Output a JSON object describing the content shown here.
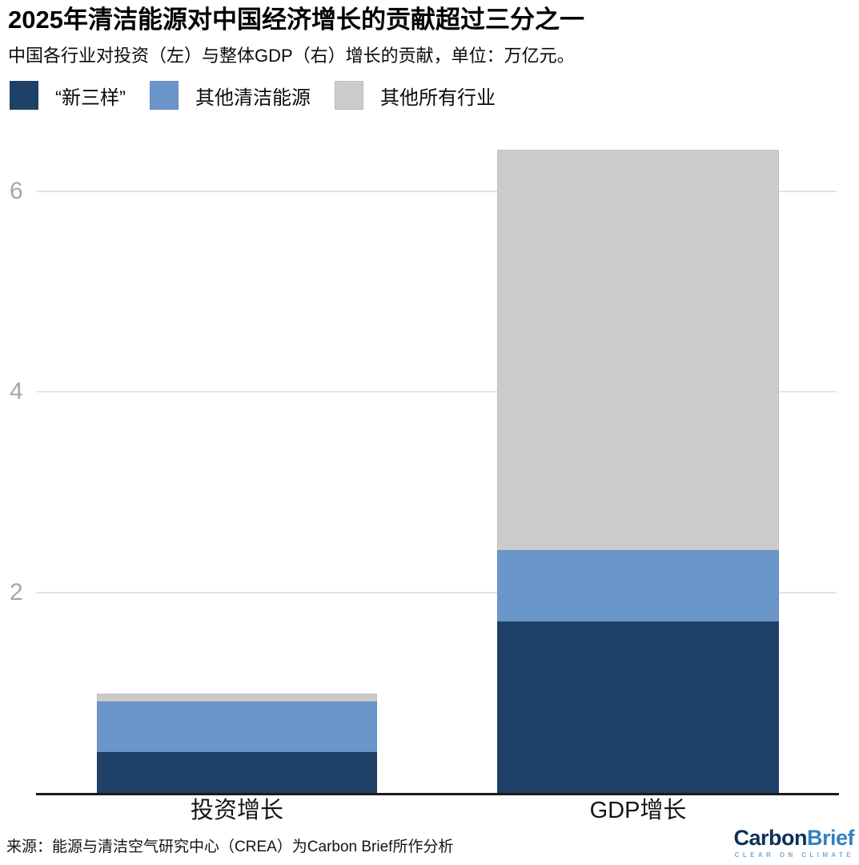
{
  "header": {
    "title": "2025年清洁能源对中国经济增长的贡献超过三分之一",
    "subtitle": "中国各行业对投资（左）与整体GDP（右）增长的贡献，单位：万亿元。"
  },
  "chart_data": {
    "type": "bar",
    "stacked": true,
    "unit": "万亿元",
    "categories": [
      "投资增长",
      "GDP增长"
    ],
    "series": [
      {
        "name": "“新三样”",
        "color": "#1f4168",
        "values": [
          0.41,
          1.71
        ]
      },
      {
        "name": "其他清洁能源",
        "color": "#6b96ca",
        "values": [
          0.5,
          0.71
        ]
      },
      {
        "name": "其他所有行业",
        "color": "#cbcbcb",
        "values": [
          0.08,
          3.99
        ]
      }
    ],
    "yticks": [
      "2",
      "4",
      "6"
    ],
    "ylim": [
      0,
      6.55
    ],
    "grid": true,
    "legend_position": "top",
    "colors": {
      "gridline": "#e4e4e4",
      "axis_line": "#1b1b1b",
      "tick_label": "#a6a6a6"
    }
  },
  "footer": {
    "source": "来源：能源与清洁空气研究中心（CREA）为Carbon Brief所作分析",
    "logo": {
      "part1": "Carbon",
      "part2": "Brief",
      "tagline": "CLEAR ON CLIMATE",
      "part1_color": "#0c3156",
      "part2_color": "#3181c3"
    }
  }
}
